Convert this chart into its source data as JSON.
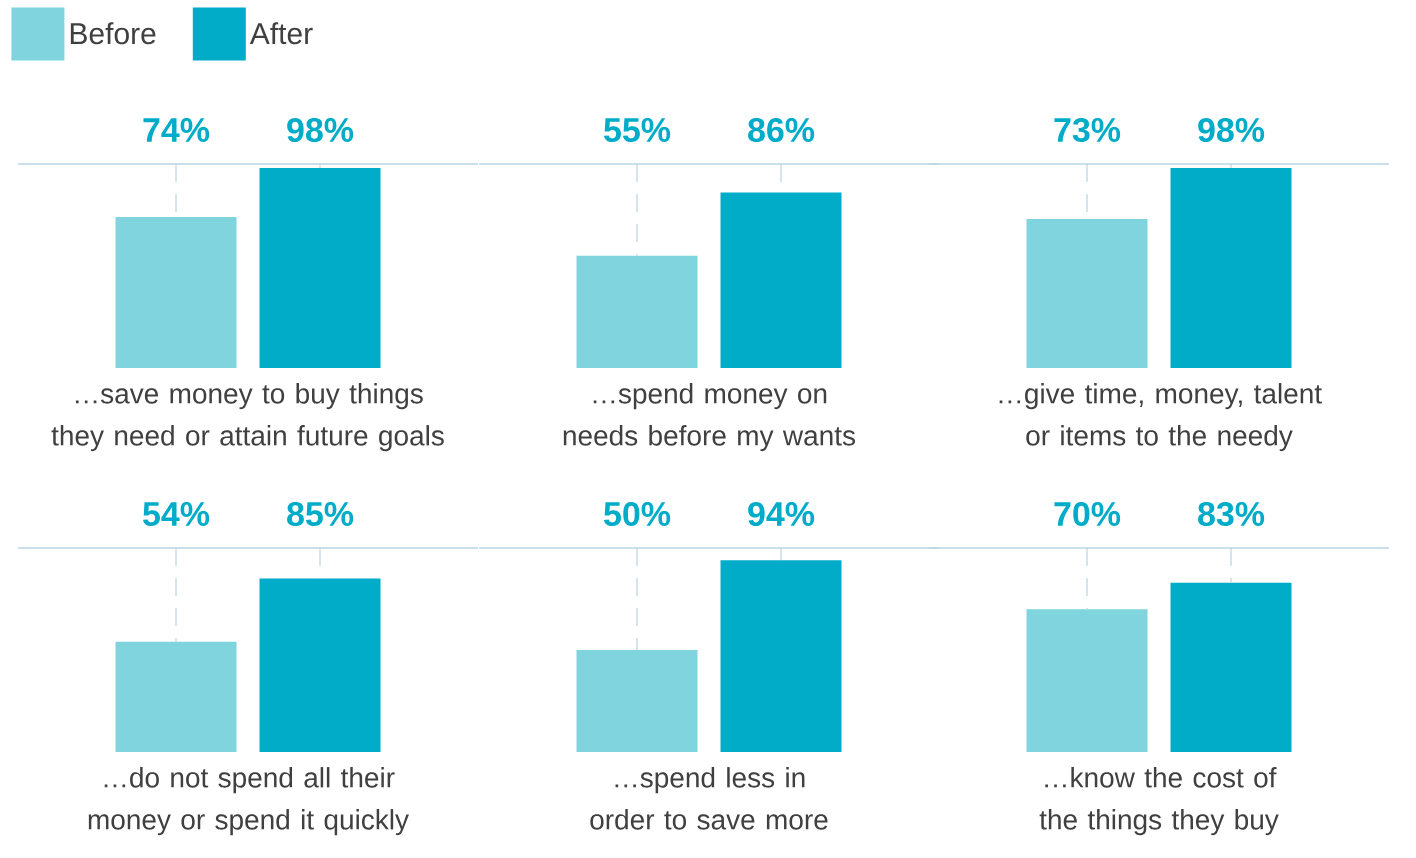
{
  "chart_data": [
    {
      "type": "bar",
      "categories": [
        null
      ],
      "xlabel": "…save money to buy things they need or attain future goals",
      "legend": "top left",
      "series": [
        {
          "name": "Before",
          "color": "#7fd4de",
          "values": [
            74
          ],
          "value_labels": [
            "74%"
          ]
        },
        {
          "name": "After",
          "color": "#00acc8",
          "values": [
            98
          ],
          "value_labels": [
            "98%"
          ]
        }
      ],
      "ref_lines": [
        {
          "axis": "y",
          "value": 100,
          "color": "#b8d4e3"
        }
      ]
    },
    {
      "type": "bar",
      "categories": [
        null
      ],
      "xlabel": "…spend money on needs before my wants",
      "series": [
        {
          "color": "#7fd4de",
          "values": [
            55
          ],
          "value_labels": [
            "55%"
          ]
        },
        {
          "color": "#00acc8",
          "values": [
            86
          ],
          "value_labels": [
            "86%"
          ]
        }
      ],
      "ref_lines": [
        {
          "axis": "y",
          "value": 100,
          "color": "#b8d4e3"
        }
      ]
    },
    {
      "type": "bar",
      "categories": [
        null
      ],
      "xlabel": "…give time, money, talent or items to the needy",
      "series": [
        {
          "color": "#7fd4de",
          "values": [
            73
          ],
          "value_labels": [
            "73%"
          ]
        },
        {
          "color": "#00acc8",
          "values": [
            98
          ],
          "value_labels": [
            "98%"
          ]
        }
      ],
      "ref_lines": [
        {
          "axis": "y",
          "value": 100,
          "color": "#b8d4e3"
        }
      ]
    },
    {
      "type": "bar",
      "categories": [
        null
      ],
      "xlabel": "…do not spend all their money or spend it quickly",
      "series": [
        {
          "color": "#7fd4de",
          "values": [
            54
          ],
          "value_labels": [
            "54%"
          ]
        },
        {
          "color": "#00acc8",
          "values": [
            85
          ],
          "value_labels": [
            "85%"
          ]
        }
      ],
      "ref_lines": [
        {
          "axis": "y",
          "value": 100,
          "color": "#b8d4e3"
        }
      ]
    },
    {
      "type": "bar",
      "categories": [
        null
      ],
      "xlabel": "…spend less in order to save more",
      "series": [
        {
          "color": "#7fd4de",
          "values": [
            50
          ],
          "value_labels": [
            "50%"
          ]
        },
        {
          "color": "#00acc8",
          "values": [
            94
          ],
          "value_labels": [
            "94%"
          ]
        }
      ],
      "ref_lines": [
        {
          "axis": "y",
          "value": 100,
          "color": "#b8d4e3"
        }
      ]
    },
    {
      "type": "bar",
      "categories": [
        null
      ],
      "xlabel": "…know the cost of the things they buy",
      "series": [
        {
          "color": "#7fd4de",
          "values": [
            70
          ],
          "value_labels": [
            "70%"
          ]
        },
        {
          "color": "#00acc8",
          "values": [
            83
          ],
          "value_labels": [
            "83%"
          ]
        }
      ],
      "ref_lines": [
        {
          "axis": "y",
          "value": 100,
          "color": "#b8d4e3"
        }
      ]
    }
  ]
}
